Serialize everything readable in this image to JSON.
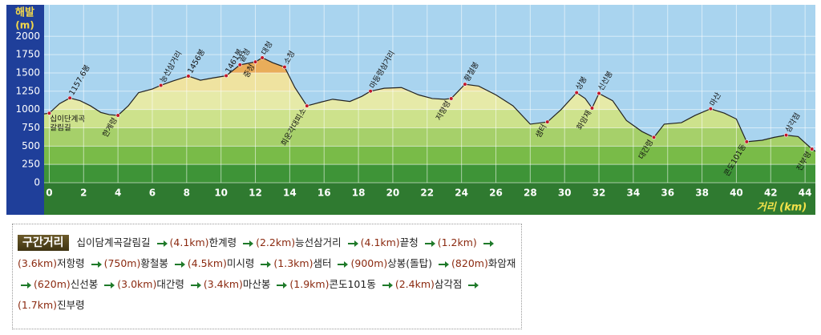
{
  "chart_data": {
    "type": "area",
    "ylabel": "해발",
    "yunit": "(m)",
    "xlabel": "거리 (km)",
    "xlim": [
      -0.3,
      44.6
    ],
    "ylim": [
      0,
      2430
    ],
    "xticks": [
      0,
      2,
      4,
      6,
      8,
      10,
      12,
      14,
      16,
      18,
      20,
      22,
      24,
      26,
      28,
      30,
      32,
      34,
      36,
      38,
      40,
      42,
      44
    ],
    "yticks": [
      0,
      250,
      500,
      750,
      1000,
      1250,
      1500,
      1750,
      2000
    ],
    "grid": true,
    "sky_color": "#a9d4ef",
    "band_colors": [
      "#3e9437",
      "#79bb48",
      "#a6d06a",
      "#cde28c",
      "#e6eaa8",
      "#efe3a0",
      "#e9ad5a",
      "#e49a44"
    ],
    "line_color": "#222222",
    "x": [
      -0.3,
      0,
      0.6,
      1.2,
      1.8,
      2.4,
      3,
      3.5,
      4,
      4.6,
      5.2,
      6,
      6.5,
      7.2,
      8.1,
      8.8,
      9.5,
      10.3,
      11.1,
      12,
      12.4,
      13,
      13.7,
      14.3,
      15,
      15.8,
      16.5,
      17.5,
      18.2,
      18.7,
      19.5,
      20.5,
      21.5,
      22.3,
      23,
      23.4,
      24.2,
      25,
      26,
      27,
      28,
      29,
      29.8,
      30.7,
      31.2,
      31.6,
      32,
      32.8,
      33.6,
      34.5,
      35.2,
      35.8,
      36.8,
      37.6,
      38.5,
      39.3,
      40,
      40.6,
      41.5,
      42.2,
      42.9,
      43.6,
      44.4,
      44.6
    ],
    "values": [
      940,
      950,
      1080,
      1157,
      1120,
      1050,
      960,
      930,
      920,
      1050,
      1230,
      1280,
      1330,
      1390,
      1456,
      1400,
      1430,
      1461,
      1610,
      1650,
      1708,
      1640,
      1580,
      1300,
      1050,
      1100,
      1140,
      1110,
      1180,
      1250,
      1290,
      1300,
      1200,
      1150,
      1140,
      1150,
      1345,
      1320,
      1200,
      1050,
      800,
      830,
      1000,
      1230,
      1150,
      1020,
      1220,
      1120,
      850,
      700,
      620,
      800,
      820,
      920,
      1010,
      950,
      870,
      560,
      580,
      620,
      650,
      630,
      460,
      430
    ],
    "annotations": [
      {
        "text": [
          "십이단계곡",
          "갈림길"
        ],
        "x": 0,
        "y": 950,
        "position": "left"
      },
      {
        "text": "1157.6봉",
        "x": 1.2,
        "y": 1157,
        "position": "above"
      },
      {
        "text": "한계령",
        "x": 4,
        "y": 920,
        "position": "below"
      },
      {
        "text": "능선삼거리",
        "x": 6.5,
        "y": 1330,
        "position": "above"
      },
      {
        "text": "1456봉",
        "x": 8.1,
        "y": 1456,
        "position": "above"
      },
      {
        "text": "1461봉",
        "x": 10.3,
        "y": 1461,
        "position": "above"
      },
      {
        "text": "끝청",
        "x": 11.1,
        "y": 1610,
        "position": "above"
      },
      {
        "text": "중청",
        "x": 12,
        "y": 1650,
        "position": "below"
      },
      {
        "text": "대청",
        "x": 12.4,
        "y": 1708,
        "position": "above"
      },
      {
        "text": "소청",
        "x": 13.7,
        "y": 1580,
        "position": "above"
      },
      {
        "text": "희운각대피소",
        "x": 15,
        "y": 1050,
        "position": "below"
      },
      {
        "text": "마등령삼거리",
        "x": 18.7,
        "y": 1250,
        "position": "above"
      },
      {
        "text": "저항령",
        "x": 23.4,
        "y": 1150,
        "position": "below"
      },
      {
        "text": "황철봉",
        "x": 24.2,
        "y": 1345,
        "position": "above"
      },
      {
        "text": "샘터",
        "x": 29,
        "y": 830,
        "position": "below"
      },
      {
        "text": "상봉",
        "x": 30.7,
        "y": 1230,
        "position": "above"
      },
      {
        "text": "화암재",
        "x": 31.6,
        "y": 1020,
        "position": "below"
      },
      {
        "text": "신선봉",
        "x": 32,
        "y": 1220,
        "position": "above"
      },
      {
        "text": "대간령",
        "x": 35.2,
        "y": 620,
        "position": "below"
      },
      {
        "text": "마산",
        "x": 38.5,
        "y": 1010,
        "position": "above"
      },
      {
        "text": "콘도101동",
        "x": 40.6,
        "y": 560,
        "position": "below"
      },
      {
        "text": "삼각점",
        "x": 42.9,
        "y": 650,
        "position": "above"
      },
      {
        "text": "진부령",
        "x": 44.4,
        "y": 460,
        "position": "below"
      }
    ]
  },
  "route": {
    "title": "구간거리",
    "items": [
      {
        "name": "십이담계곡갈림길"
      },
      {
        "distance": "(4.1km)",
        "name": "한계령"
      },
      {
        "distance": "(2.2km)",
        "name": "능선삼거리"
      },
      {
        "distance": "(4.1km)",
        "name": "끝청"
      },
      {
        "distance": "(1.2km)"
      },
      {
        "distance": "(3.6km)",
        "name": "저항령"
      },
      {
        "distance": "(750m)",
        "name": "황철봉"
      },
      {
        "distance": "(4.5km)",
        "name": "미시령"
      },
      {
        "distance": "(1.3km)",
        "name": "샘터"
      },
      {
        "distance": "(900m)",
        "name": "상봉(돌탑)"
      },
      {
        "distance": "(820m)",
        "name": "화암재"
      },
      {
        "distance": "(620m)",
        "name": "신선봉"
      },
      {
        "distance": "(3.0km)",
        "name": "대간령"
      },
      {
        "distance": "(3.4km)",
        "name": "마산봉"
      },
      {
        "distance": "(1.9km)",
        "name": "콘도101동"
      },
      {
        "distance": "(2.4km)",
        "name": "삼각점"
      },
      {
        "distance": "(1.7km)",
        "name": "진부령"
      }
    ]
  }
}
